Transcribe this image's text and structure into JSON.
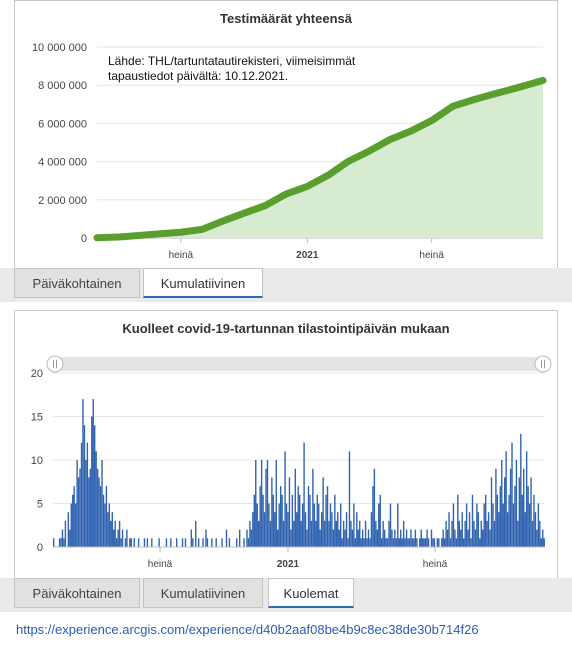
{
  "charts": {
    "top": {
      "title": "Testimäärät yhteensä",
      "note_line1": "Lähde: THL/tartuntatautirekisteri, viimeisimmät",
      "note_line2": "tapaustiedot päivältä: 10.12.2021."
    },
    "bottom": {
      "title": "Kuolleet covid-19-tartunnan tilastointipäivän mukaan"
    }
  },
  "tabs_top": [
    {
      "label": "Päiväkohtainen",
      "active": false
    },
    {
      "label": "Kumulatiivinen",
      "active": true
    }
  ],
  "tabs_bottom": [
    {
      "label": "Päiväkohtainen",
      "active": false
    },
    {
      "label": "Kumulatiivinen",
      "active": false
    },
    {
      "label": "Kuolemat",
      "active": true
    }
  ],
  "footer_url": "https://experience.arcgis.com/experience/d40b2aaf08be4b9c8ec38de30b714f26",
  "colors": {
    "line": "#5a9e2e",
    "area": "#d6ebcf",
    "bars": "#2f62b0",
    "grid": "#e6e6e6",
    "tab_active_border": "#2a6cb3"
  },
  "chart_data": [
    {
      "type": "area",
      "title": "Testimäärät yhteensä",
      "x_ticks": [
        "heinä",
        "2021",
        "heinä"
      ],
      "x_tick_dates": [
        "2020-07-01",
        "2021-01-01",
        "2021-07-01"
      ],
      "y_ticks": [
        "0",
        "2 000 000",
        "4 000 000",
        "6 000 000",
        "8 000 000",
        "10 000 000"
      ],
      "ylim": [
        0,
        10000000
      ],
      "xlim": [
        "2020-03-01",
        "2021-12-10"
      ],
      "grid": true,
      "series": [
        {
          "x": [
            "2020-03-01",
            "2020-04-01",
            "2020-05-01",
            "2020-06-01",
            "2020-07-01",
            "2020-08-01",
            "2020-09-01",
            "2020-10-01",
            "2020-11-01",
            "2020-12-01",
            "2021-01-01",
            "2021-02-01",
            "2021-03-01",
            "2021-04-01",
            "2021-05-01",
            "2021-06-01",
            "2021-07-01",
            "2021-08-01",
            "2021-09-01",
            "2021-10-01",
            "2021-11-01",
            "2021-12-10"
          ],
          "values": [
            10000,
            50000,
            130000,
            220000,
            300000,
            450000,
            900000,
            1300000,
            1700000,
            2300000,
            2700000,
            3300000,
            4000000,
            4550000,
            5150000,
            5600000,
            6150000,
            6900000,
            7250000,
            7550000,
            7850000,
            8250000
          ]
        }
      ]
    },
    {
      "type": "bar",
      "title": "Kuolleet covid-19-tartunnan tilastointipäivän mukaan",
      "x_ticks": [
        "heinä",
        "2021",
        "heinä"
      ],
      "y_ticks": [
        "0",
        "5",
        "10",
        "15",
        "20"
      ],
      "ylim": [
        0,
        20
      ],
      "grid": true,
      "note": "daily bars, approximate values read from the figure",
      "series": [
        {
          "values": [
            1,
            0,
            0,
            0,
            1,
            1,
            2,
            1,
            3,
            0,
            4,
            2,
            5,
            6,
            7,
            5,
            10,
            8,
            9,
            12,
            17,
            14,
            10,
            12,
            8,
            9,
            15,
            17,
            14,
            11,
            9,
            8,
            7,
            10,
            6,
            5,
            7,
            4,
            5,
            3,
            4,
            2,
            3,
            1,
            2,
            3,
            1,
            2,
            0,
            1,
            2,
            0,
            1,
            1,
            0,
            1,
            0,
            0,
            1,
            0,
            0,
            0,
            1,
            0,
            1,
            0,
            0,
            1,
            0,
            0,
            0,
            0,
            1,
            0,
            0,
            0,
            0,
            1,
            0,
            0,
            1,
            0,
            0,
            0,
            1,
            0,
            0,
            0,
            1,
            0,
            1,
            0,
            0,
            0,
            2,
            1,
            0,
            3,
            0,
            1,
            0,
            0,
            1,
            0,
            2,
            1,
            0,
            0,
            1,
            0,
            0,
            1,
            0,
            0,
            0,
            1,
            0,
            0,
            2,
            0,
            1,
            0,
            0,
            0,
            0,
            1,
            0,
            2,
            0,
            0,
            1,
            0,
            2,
            1,
            3,
            2,
            4,
            6,
            10,
            5,
            3,
            7,
            10,
            6,
            4,
            9,
            10,
            5,
            3,
            8,
            6,
            4,
            10,
            2,
            5,
            7,
            6,
            3,
            11,
            5,
            4,
            8,
            2,
            6,
            3,
            9,
            4,
            7,
            6,
            3,
            5,
            12,
            4,
            2,
            7,
            6,
            3,
            9,
            5,
            3,
            6,
            5,
            2,
            4,
            8,
            3,
            6,
            7,
            3,
            5,
            4,
            2,
            6,
            3,
            4,
            2,
            5,
            1,
            3,
            2,
            4,
            1,
            11,
            3,
            2,
            5,
            1,
            4,
            2,
            3,
            1,
            2,
            1,
            3,
            1,
            2,
            1,
            4,
            7,
            9,
            3,
            2,
            5,
            6,
            1,
            3,
            2,
            1,
            1,
            3,
            5,
            2,
            1,
            2,
            1,
            5,
            1,
            2,
            1,
            3,
            1,
            2,
            1,
            1,
            2,
            1,
            1,
            2,
            1,
            0,
            1,
            2,
            1,
            1,
            1,
            2,
            1,
            0,
            2,
            1,
            1,
            0,
            1,
            1,
            0,
            1,
            2,
            1,
            3,
            2,
            4,
            1,
            3,
            5,
            2,
            1,
            6,
            3,
            2,
            4,
            1,
            3,
            5,
            2,
            4,
            1,
            6,
            3,
            2,
            5,
            4,
            1,
            3,
            2,
            5,
            6,
            3,
            4,
            2,
            8,
            5,
            3,
            9,
            6,
            4,
            7,
            10,
            5,
            8,
            11,
            4,
            6,
            9,
            12,
            5,
            7,
            10,
            3,
            8,
            13,
            6,
            9,
            4,
            11,
            7,
            5,
            8,
            3,
            6,
            4,
            2,
            5,
            3,
            1,
            2,
            1
          ]
        }
      ]
    }
  ]
}
